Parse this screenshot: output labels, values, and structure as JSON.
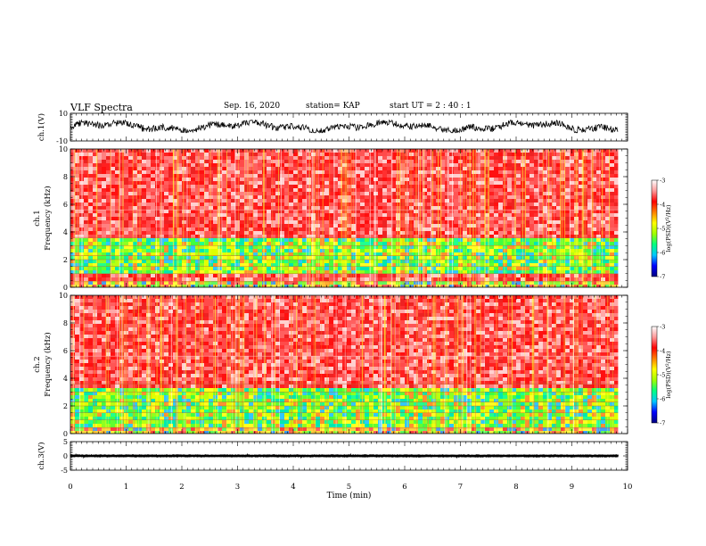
{
  "header": {
    "title": "VLF Spectra",
    "date": "Sep. 16, 2020",
    "station": "station= KAP",
    "start": "start UT =  2 : 40 : 1"
  },
  "chart_data": [
    {
      "type": "line",
      "panel": "ch1-waveform",
      "ylabel": "ch.1(V)",
      "ylim": [
        -10,
        10
      ],
      "yticks": [
        "10",
        "-10"
      ],
      "xlim": [
        0,
        10
      ],
      "x_end": 9.83,
      "level_band": [
        -4,
        5
      ],
      "color": "#000000"
    },
    {
      "type": "heatmap",
      "panel": "ch1-spectrogram",
      "ylabel": "Frequency (kHz)",
      "channel_label": "ch.1",
      "ylim": [
        0,
        10
      ],
      "yticks": [
        "0",
        "2",
        "4",
        "6",
        "8",
        "10"
      ],
      "xlim": [
        0,
        10
      ],
      "x_end": 9.83,
      "bands": [
        {
          "from": 0.0,
          "to": 0.5,
          "level": "mixed"
        },
        {
          "from": 0.5,
          "to": 1.0,
          "level": "high"
        },
        {
          "from": 1.0,
          "to": 3.6,
          "level": "low"
        },
        {
          "from": 3.6,
          "to": 10.0,
          "level": "high"
        }
      ],
      "colorbar": {
        "label": "log(PSD)(V^2/Hz)",
        "label_parts": [
          "log(PSD)(V",
          "2",
          "/Hz)"
        ],
        "ticks": [
          "-3",
          "-4",
          "-5",
          "-6",
          "-7"
        ],
        "range": [
          -7,
          -3
        ],
        "colors": [
          "#000080",
          "#0000ff",
          "#00c8ff",
          "#00ff80",
          "#a0ff00",
          "#ffff00",
          "#ff8000",
          "#ff0000",
          "#ff9999",
          "#ffffff"
        ]
      }
    },
    {
      "type": "heatmap",
      "panel": "ch2-spectrogram",
      "ylabel": "Frequency (kHz)",
      "channel_label": "ch.2",
      "ylim": [
        0,
        10
      ],
      "yticks": [
        "0",
        "2",
        "4",
        "6",
        "8",
        "10"
      ],
      "xlim": [
        0,
        10
      ],
      "x_end": 9.83,
      "bands": [
        {
          "from": 0.0,
          "to": 0.5,
          "level": "mixed"
        },
        {
          "from": 0.5,
          "to": 3.4,
          "level": "low"
        },
        {
          "from": 3.4,
          "to": 10.0,
          "level": "high"
        }
      ],
      "colorbar": {
        "label": "log(PSD)(V^2/Hz)",
        "label_parts": [
          "log(PSD)(V",
          "2",
          "/Hz)"
        ],
        "ticks": [
          "-3",
          "-4",
          "-5",
          "-6",
          "-7"
        ],
        "range": [
          -7,
          -3
        ],
        "colors": [
          "#000080",
          "#0000ff",
          "#00c8ff",
          "#00ff80",
          "#a0ff00",
          "#ffff00",
          "#ff8000",
          "#ff0000",
          "#ff9999",
          "#ffffff"
        ]
      }
    },
    {
      "type": "line",
      "panel": "ch3-waveform",
      "ylabel": "ch.3(V)",
      "ylim": [
        -5,
        5
      ],
      "yticks": [
        "5",
        "0",
        "-5"
      ],
      "xlim": [
        0,
        10
      ],
      "x_end": 9.83,
      "level_band": [
        -0.5,
        0.5
      ],
      "color": "#000000"
    }
  ],
  "xaxis": {
    "label": "Time (min)",
    "ticks": [
      "0",
      "1",
      "2",
      "3",
      "4",
      "5",
      "6",
      "7",
      "8",
      "9",
      "10"
    ]
  }
}
